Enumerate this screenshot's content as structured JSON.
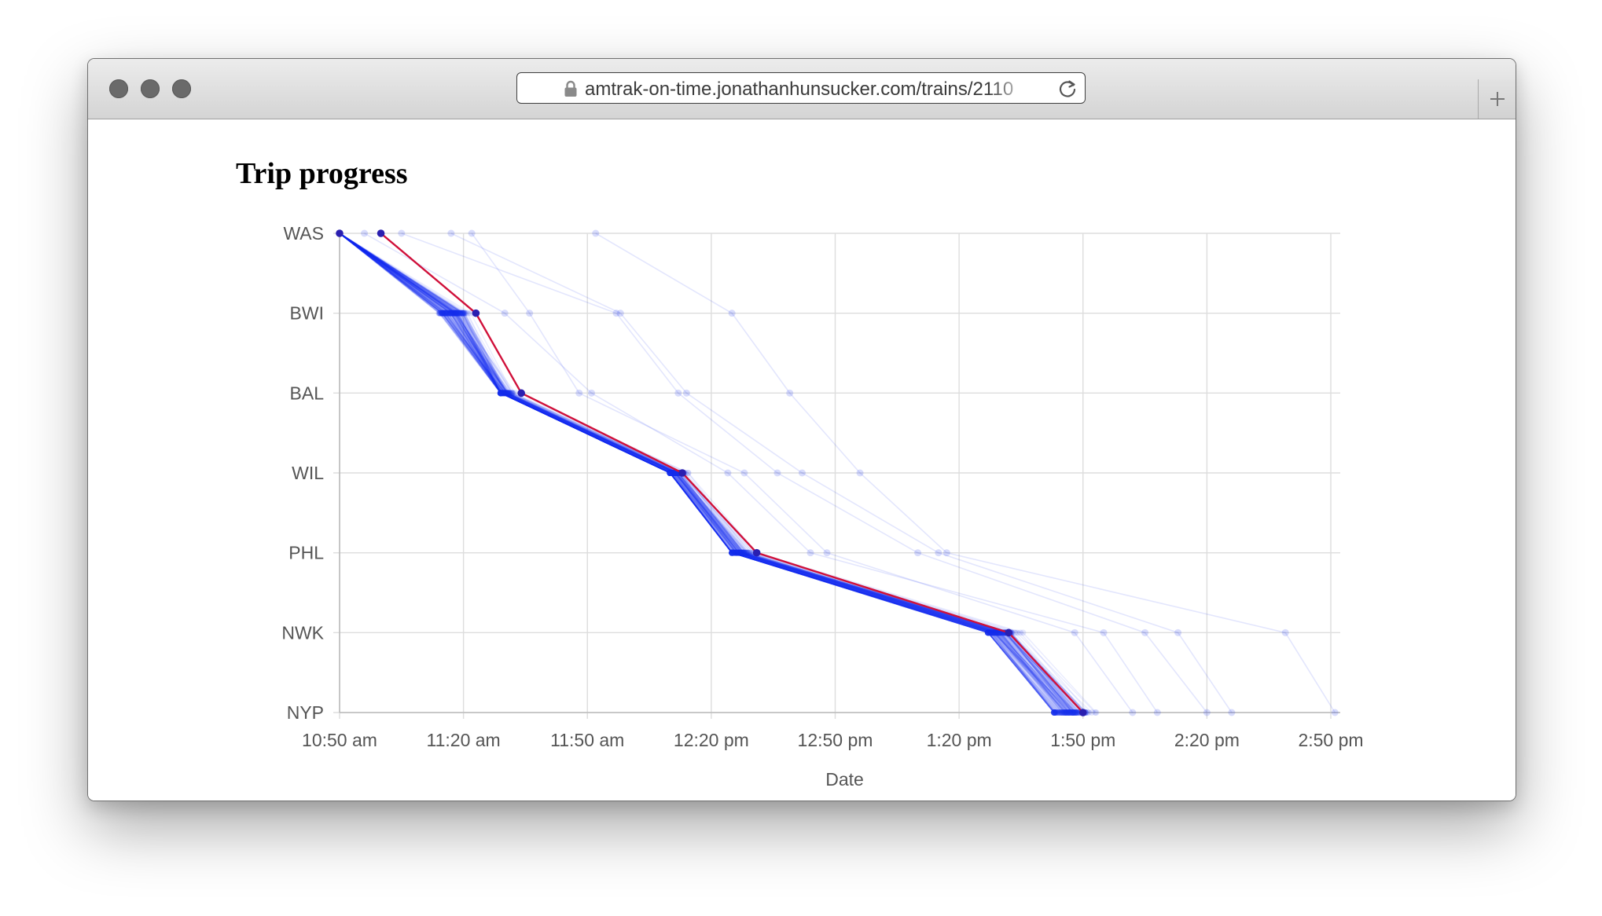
{
  "browser": {
    "url": "amtrak-on-time.jonathanhunsucker.com/trains/2110",
    "icons": {
      "lock": "lock-icon",
      "reload": "reload-icon",
      "new_tab": "plus-icon"
    }
  },
  "page": {
    "title": "Trip progress"
  },
  "chart_data": {
    "type": "line",
    "title": "",
    "xlabel": "Date",
    "ylabel": "",
    "x_domain": [
      "10:50 am",
      "2:50 pm"
    ],
    "x_ticks": [
      "10:50 am",
      "11:20 am",
      "11:50 am",
      "12:20 pm",
      "12:50 pm",
      "1:20 pm",
      "1:50 pm",
      "2:20 pm",
      "2:50 pm"
    ],
    "y_categories": [
      "WAS",
      "BWI",
      "BAL",
      "WIL",
      "PHL",
      "NWK",
      "NYP"
    ],
    "grid": true,
    "colors": {
      "history": "#1a2ff0",
      "current": "#d0103a",
      "grid": "#dddddd",
      "axis": "#bbbbbb"
    },
    "highlighted_trip": {
      "stops": [
        "WAS",
        "BWI",
        "BAL",
        "WIL",
        "PHL",
        "NWK",
        "NYP"
      ],
      "times": [
        "11:00 am",
        "11:23 am",
        "11:34 am",
        "12:13 pm",
        "12:31 pm",
        "1:32 pm",
        "1:50 pm"
      ]
    },
    "typical_trip": {
      "stops": [
        "WAS",
        "BWI",
        "BAL",
        "WIL",
        "PHL",
        "NWK",
        "NYP"
      ],
      "times": [
        "10:50 am",
        "11:14 am",
        "11:29 am",
        "12:10 pm",
        "12:25 pm",
        "1:27 pm",
        "1:43 pm"
      ]
    },
    "historical_trip_count": 150,
    "delayed_trips": [
      {
        "stops": [
          "WAS",
          "BWI",
          "BAL",
          "WIL",
          "PHL",
          "NWK",
          "NYP"
        ],
        "times": [
          "11:05 am",
          "11:57 am",
          "12:12 pm",
          "12:36 pm",
          "1:10 pm",
          "2:05 pm",
          "2:20 pm"
        ]
      },
      {
        "stops": [
          "WAS",
          "BWI",
          "BAL",
          "WIL",
          "PHL",
          "NWK",
          "NYP"
        ],
        "times": [
          "11:17 am",
          "11:58 am",
          "12:14 pm",
          "12:42 pm",
          "1:15 pm",
          "2:13 pm",
          "2:26 pm"
        ]
      },
      {
        "stops": [
          "WAS",
          "BWI",
          "BAL",
          "WIL",
          "PHL",
          "NWK",
          "NYP"
        ],
        "times": [
          "11:52 am",
          "12:25 pm",
          "12:39 pm",
          "12:56 pm",
          "1:17 pm",
          "2:39 pm",
          "2:51 pm"
        ]
      },
      {
        "stops": [
          "WAS",
          "BWI",
          "BAL",
          "WIL",
          "PHL",
          "NWK",
          "NYP"
        ],
        "times": [
          "11:22 am",
          "11:36 am",
          "11:48 am",
          "12:28 pm",
          "12:48 pm",
          "1:48 pm",
          "2:02 pm"
        ]
      },
      {
        "stops": [
          "WAS",
          "BWI",
          "BAL",
          "WIL",
          "PHL",
          "NWK",
          "NYP"
        ],
        "times": [
          "10:56 am",
          "11:30 am",
          "11:51 am",
          "12:24 pm",
          "12:44 pm",
          "1:55 pm",
          "2:08 pm"
        ]
      }
    ]
  }
}
